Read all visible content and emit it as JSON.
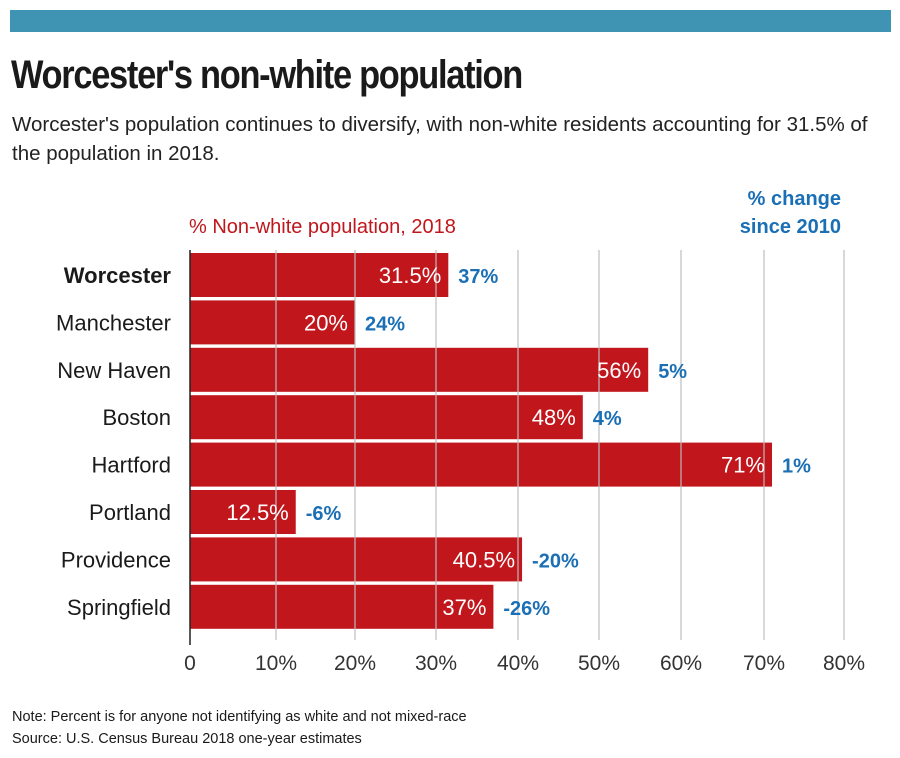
{
  "header": {
    "title": "Worcester's non-white population",
    "subtitle": "Worcester's population continues to diversify, with non-white residents accounting for 31.5% of the population in 2018."
  },
  "colors": {
    "band": "#3f93b3",
    "bar": "#c0161c",
    "change": "#1a6fb5",
    "grid": "#bcbcbc"
  },
  "chart_data": {
    "type": "bar",
    "orientation": "horizontal",
    "title": "Worcester's non-white population",
    "series_label": "% Non-white population, 2018",
    "change_label": "% change since 2010",
    "change_label_lines": [
      "% change",
      "since 2010"
    ],
    "categories": [
      "Worcester",
      "Manchester",
      "New Haven",
      "Boston",
      "Hartford",
      "Portland",
      "Providence",
      "Springfield"
    ],
    "highlight": "Worcester",
    "values": [
      31.5,
      20,
      56,
      48,
      71,
      12.5,
      40.5,
      37
    ],
    "value_labels": [
      "31.5%",
      "20%",
      "56%",
      "48%",
      "71%",
      "12.5%",
      "40.5%",
      "37%"
    ],
    "change_since_2010": [
      37,
      24,
      5,
      4,
      1,
      -6,
      -20,
      -26
    ],
    "change_labels": [
      "37%",
      "24%",
      "5%",
      "4%",
      "1%",
      "-6%",
      "-20%",
      "-26%"
    ],
    "xlim": [
      0,
      80
    ],
    "xticks": [
      0,
      10,
      20,
      30,
      40,
      50,
      60,
      70,
      80
    ],
    "xtick_labels": [
      "0",
      "10%",
      "20%",
      "30%",
      "40%",
      "50%",
      "60%",
      "70%",
      "80%"
    ],
    "grid": true,
    "xlabel": "",
    "ylabel": ""
  },
  "footer": {
    "note": "Note: Percent is for anyone not identifying as white and not mixed-race",
    "source": "Source: U.S. Census Bureau 2018 one-year estimates"
  }
}
